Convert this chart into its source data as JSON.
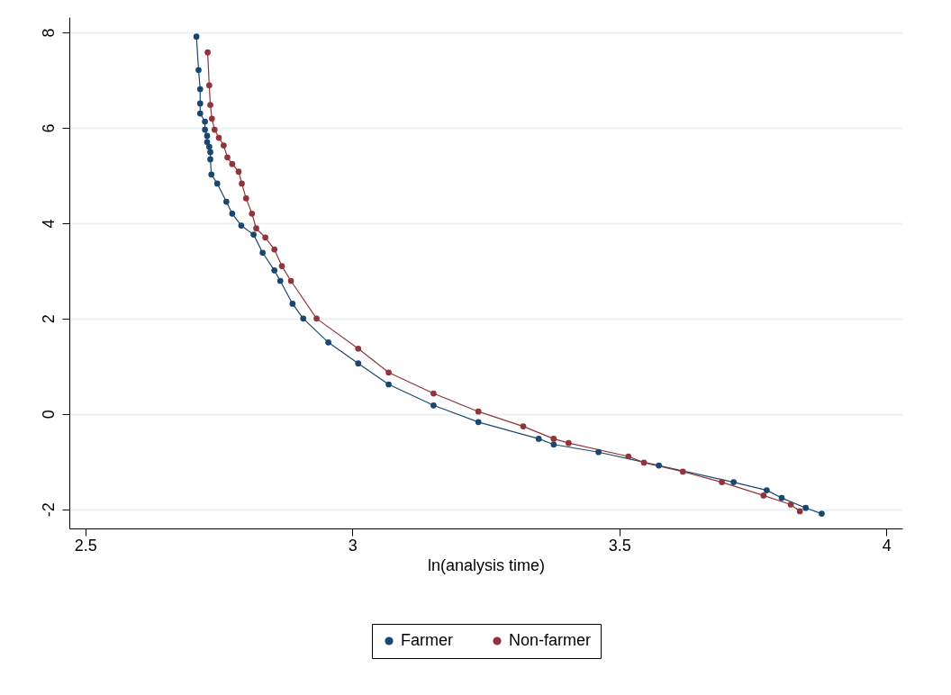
{
  "chart_data": {
    "type": "line",
    "xlabel": "ln(analysis time)",
    "xlim": [
      2.47,
      4.03
    ],
    "xticks": [
      2.5,
      3,
      3.5,
      4
    ],
    "ylim": [
      -2.4,
      8.32
    ],
    "yticks": [
      -2,
      0,
      2,
      4,
      6,
      8
    ],
    "grid": "y",
    "legend": "bottom",
    "marker": "circle",
    "line_style": "solid",
    "series": [
      {
        "name": "Farmer",
        "color": "#1a476f",
        "x": [
          2.708,
          2.712,
          2.715,
          2.715,
          2.715,
          2.724,
          2.724,
          2.728,
          2.728,
          2.732,
          2.734,
          2.734,
          2.736,
          2.747,
          2.764,
          2.775,
          2.792,
          2.815,
          2.832,
          2.854,
          2.865,
          2.888,
          2.908,
          2.955,
          3.011,
          3.068,
          3.152,
          3.236,
          3.349,
          3.377,
          3.461,
          3.574,
          3.714,
          3.776,
          3.804,
          3.849,
          3.879
        ],
        "values": [
          7.91,
          7.21,
          6.81,
          6.51,
          6.3,
          6.13,
          5.96,
          5.83,
          5.7,
          5.6,
          5.49,
          5.34,
          5.02,
          4.83,
          4.45,
          4.2,
          3.95,
          3.76,
          3.38,
          3.01,
          2.79,
          2.31,
          2.0,
          1.5,
          1.06,
          0.62,
          0.18,
          -0.17,
          -0.52,
          -0.64,
          -0.8,
          -1.08,
          -1.43,
          -1.6,
          -1.76,
          -1.97,
          -2.09
        ]
      },
      {
        "name": "Non-farmer",
        "color": "#90353b",
        "x": [
          2.729,
          2.732,
          2.734,
          2.737,
          2.742,
          2.75,
          2.759,
          2.766,
          2.775,
          2.787,
          2.793,
          2.801,
          2.812,
          2.82,
          2.837,
          2.854,
          2.868,
          2.885,
          2.933,
          3.011,
          3.068,
          3.152,
          3.236,
          3.32,
          3.377,
          3.405,
          3.517,
          3.546,
          3.619,
          3.692,
          3.77,
          3.821,
          3.838
        ],
        "values": [
          7.58,
          6.89,
          6.48,
          6.19,
          5.96,
          5.79,
          5.63,
          5.38,
          5.24,
          5.08,
          4.83,
          4.52,
          4.2,
          3.89,
          3.7,
          3.45,
          3.1,
          2.79,
          2.0,
          1.37,
          0.87,
          0.43,
          0.05,
          -0.26,
          -0.52,
          -0.61,
          -0.89,
          -1.02,
          -1.21,
          -1.43,
          -1.71,
          -1.9,
          -2.04
        ]
      }
    ]
  }
}
